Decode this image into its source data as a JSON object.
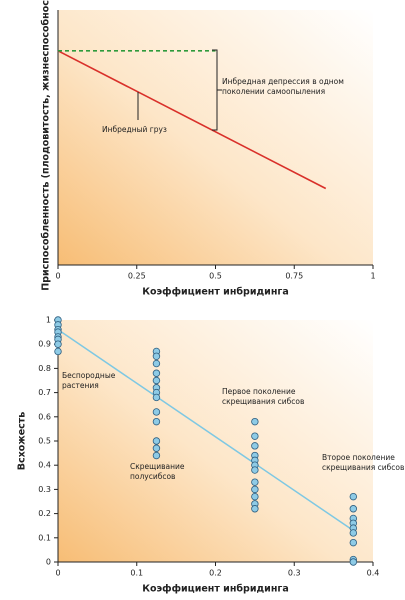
{
  "chart_data": [
    {
      "type": "line",
      "xlabel": "Коэффициент инбридинга",
      "ylabel": "Приспособленность (плодовитость, жизнеспособность)",
      "xlim": [
        0,
        1
      ],
      "xticks": [
        0,
        0.25,
        0.5,
        0.75,
        1
      ],
      "ylim": [
        0,
        1
      ],
      "series": [
        {
          "x": [
            0,
            0.85
          ],
          "values": [
            0.84,
            0.3
          ],
          "color": "#d9302a",
          "dash": false
        },
        {
          "x": [
            0,
            0.5
          ],
          "values": [
            0.84,
            0.84
          ],
          "color": "#2e9a3c",
          "dash": true
        }
      ],
      "annotations": [
        {
          "lines": [
            "Инбредная депрессия в одном",
            "поколении самоопыления"
          ]
        },
        {
          "lines": [
            "Инбредный груз"
          ]
        }
      ]
    },
    {
      "type": "scatter",
      "xlabel": "Коэффициент инбридинга",
      "ylabel": "Всхожесть",
      "xlim": [
        0,
        0.4
      ],
      "xticks": [
        0,
        0.1,
        0.2,
        0.3,
        0.4
      ],
      "ylim": [
        0,
        1
      ],
      "yticks": [
        0,
        0.1,
        0.2,
        0.3,
        0.4,
        0.5,
        0.6,
        0.7,
        0.8,
        0.9,
        1
      ],
      "color": "#8ecbe6",
      "series": [
        {
          "x": [
            0,
            0,
            0,
            0,
            0,
            0,
            0,
            0
          ],
          "values": [
            1,
            0.98,
            0.96,
            0.95,
            0.93,
            0.92,
            0.9,
            0.87
          ]
        },
        {
          "x": [
            0.125,
            0.125,
            0.125,
            0.125,
            0.125,
            0.125,
            0.125,
            0.125,
            0.125,
            0.125,
            0.125,
            0.125,
            0.125
          ],
          "values": [
            0.87,
            0.85,
            0.82,
            0.78,
            0.75,
            0.72,
            0.7,
            0.68,
            0.62,
            0.58,
            0.5,
            0.47,
            0.44
          ]
        },
        {
          "x": [
            0.25,
            0.25,
            0.25,
            0.25,
            0.25,
            0.25,
            0.25,
            0.25,
            0.25,
            0.25,
            0.25,
            0.25
          ],
          "values": [
            0.58,
            0.52,
            0.48,
            0.44,
            0.42,
            0.4,
            0.38,
            0.33,
            0.3,
            0.27,
            0.24,
            0.22
          ]
        },
        {
          "x": [
            0.375,
            0.375,
            0.375,
            0.375,
            0.375,
            0.375,
            0.375,
            0.375,
            0.375
          ],
          "values": [
            0.27,
            0.22,
            0.18,
            0.16,
            0.14,
            0.12,
            0.08,
            0.01,
            0
          ]
        }
      ],
      "fit_line": {
        "x": [
          0,
          0.375
        ],
        "values": [
          0.96,
          0.13
        ],
        "color": "#7ec8e3"
      },
      "annotations": [
        {
          "lines": [
            "Беспородные",
            "растения"
          ]
        },
        {
          "lines": [
            "Скрещивание",
            "полусибсов"
          ]
        },
        {
          "lines": [
            "Первое поколение",
            "скрещивания сибсов"
          ]
        },
        {
          "lines": [
            "Второе поколение",
            "скрещивания сибсов"
          ]
        }
      ]
    }
  ]
}
